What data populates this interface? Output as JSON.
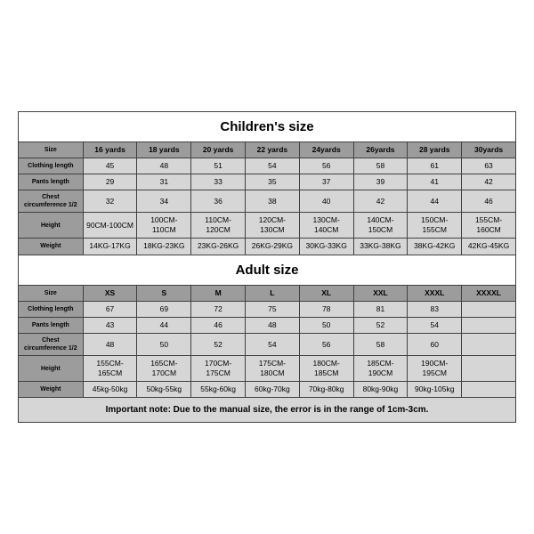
{
  "colors": {
    "border": "#404040",
    "title_bg": "#ffffff",
    "header_bg": "#9c9c9c",
    "row_bg": "#d6d6d6",
    "text": "#000000"
  },
  "children": {
    "title": "Children's size",
    "header": [
      "Size",
      "16 yards",
      "18 yards",
      "20 yards",
      "22 yards",
      "24yards",
      "26yards",
      "28 yards",
      "30yards"
    ],
    "rows": [
      {
        "label": "Clothing length",
        "vals": [
          "45",
          "48",
          "51",
          "54",
          "56",
          "58",
          "61",
          "63"
        ]
      },
      {
        "label": "Pants length",
        "vals": [
          "29",
          "31",
          "33",
          "35",
          "37",
          "39",
          "41",
          "42"
        ]
      },
      {
        "label": "Chest circumference 1/2",
        "vals": [
          "32",
          "34",
          "36",
          "38",
          "40",
          "42",
          "44",
          "46"
        ]
      },
      {
        "label": "Height",
        "vals": [
          "90CM-100CM",
          "100CM-110CM",
          "110CM-120CM",
          "120CM-130CM",
          "130CM-140CM",
          "140CM-150CM",
          "150CM-155CM",
          "155CM-160CM"
        ]
      },
      {
        "label": "Weight",
        "vals": [
          "14KG-17KG",
          "18KG-23KG",
          "23KG-26KG",
          "26KG-29KG",
          "30KG-33KG",
          "33KG-38KG",
          "38KG-42KG",
          "42KG-45KG"
        ]
      }
    ]
  },
  "adult": {
    "title": "Adult size",
    "header": [
      "Size",
      "XS",
      "S",
      "M",
      "L",
      "XL",
      "XXL",
      "XXXL",
      "XXXXL"
    ],
    "rows": [
      {
        "label": "Clothing length",
        "vals": [
          "67",
          "69",
          "72",
          "75",
          "78",
          "81",
          "83",
          ""
        ]
      },
      {
        "label": "Pants length",
        "vals": [
          "43",
          "44",
          "46",
          "48",
          "50",
          "52",
          "54",
          ""
        ]
      },
      {
        "label": "Chest circumference 1/2",
        "vals": [
          "48",
          "50",
          "52",
          "54",
          "56",
          "58",
          "60",
          ""
        ]
      },
      {
        "label": "Height",
        "vals": [
          "155CM-165CM",
          "165CM-170CM",
          "170CM-175CM",
          "175CM-180CM",
          "180CM-185CM",
          "185CM-190CM",
          "190CM-195CM",
          ""
        ]
      },
      {
        "label": "Weight",
        "vals": [
          "45kg-50kg",
          "50kg-55kg",
          "55kg-60kg",
          "60kg-70kg",
          "70kg-80kg",
          "80kg-90kg",
          "90kg-105kg",
          ""
        ]
      }
    ]
  },
  "note": "Important note: Due to the manual size, the error is in the range of 1cm-3cm."
}
